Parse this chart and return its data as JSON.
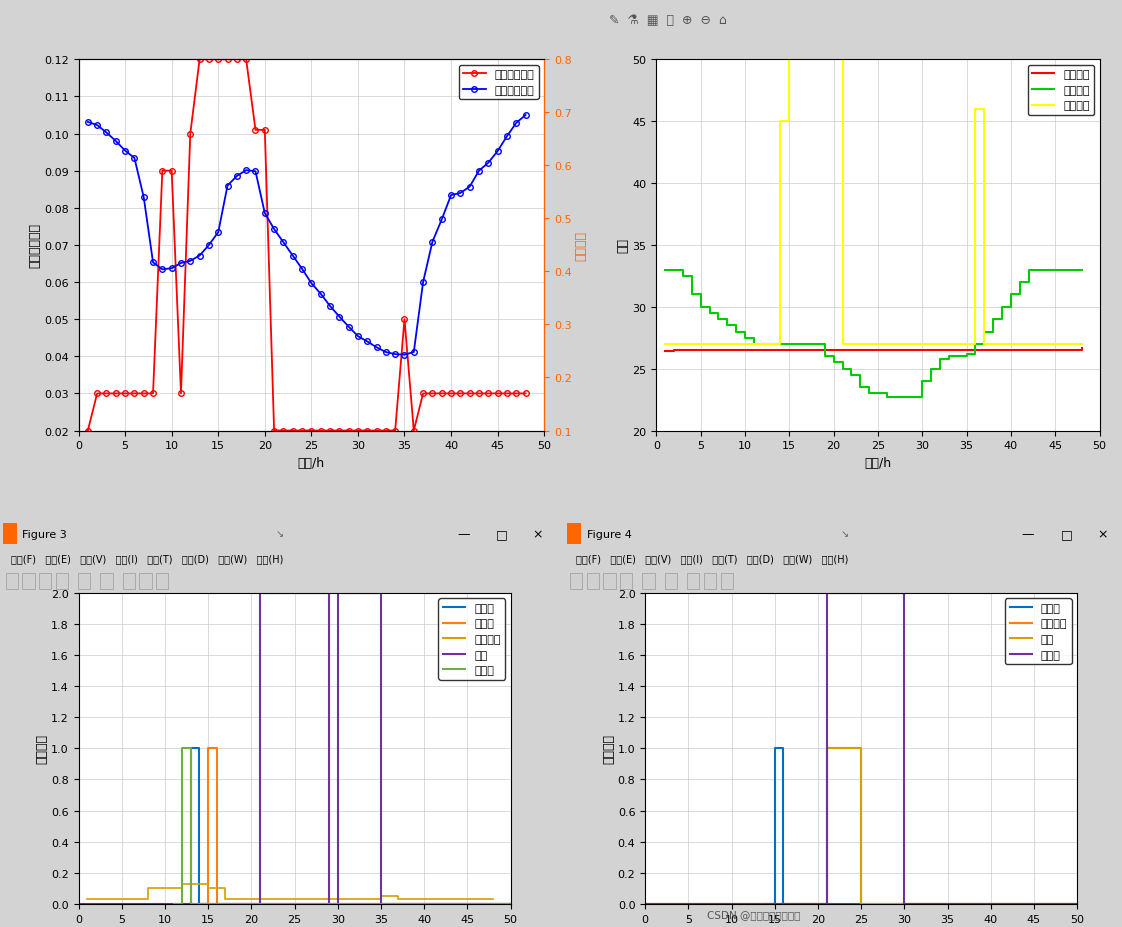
{
  "fig1": {
    "xlabel": "时间/h",
    "ylabel_left": "刚性负荷大小",
    "ylabel_right": "实时电价",
    "xlim": [
      0,
      50
    ],
    "ylim_left": [
      0.02,
      0.12
    ],
    "ylim_right": [
      0.1,
      0.8
    ],
    "rigid_load_x": [
      1,
      2,
      3,
      4,
      5,
      6,
      7,
      8,
      9,
      10,
      11,
      12,
      13,
      14,
      15,
      16,
      17,
      18,
      19,
      20,
      21,
      22,
      23,
      24,
      25,
      26,
      27,
      28,
      29,
      30,
      31,
      32,
      33,
      34,
      35,
      36,
      37,
      38,
      39,
      40,
      41,
      42,
      43,
      44,
      45,
      46,
      47,
      48
    ],
    "rigid_load_y": [
      0.02,
      0.03,
      0.03,
      0.03,
      0.03,
      0.03,
      0.03,
      0.03,
      0.09,
      0.09,
      0.03,
      0.1,
      0.12,
      0.12,
      0.12,
      0.12,
      0.12,
      0.12,
      0.101,
      0.101,
      0.02,
      0.02,
      0.02,
      0.02,
      0.02,
      0.02,
      0.02,
      0.02,
      0.02,
      0.02,
      0.02,
      0.02,
      0.02,
      0.02,
      0.05,
      0.02,
      0.03,
      0.03,
      0.03,
      0.03,
      0.03,
      0.03,
      0.03,
      0.03,
      0.03,
      0.03,
      0.03,
      0.03
    ],
    "price_x": [
      1,
      2,
      3,
      4,
      5,
      6,
      7,
      8,
      9,
      10,
      11,
      12,
      13,
      14,
      15,
      16,
      17,
      18,
      19,
      20,
      21,
      22,
      23,
      24,
      25,
      26,
      27,
      28,
      29,
      30,
      31,
      32,
      33,
      34,
      35,
      36,
      37,
      38,
      39,
      40,
      41,
      42,
      43,
      44,
      45,
      46,
      47,
      48
    ],
    "price_y": [
      0.682,
      0.676,
      0.662,
      0.646,
      0.628,
      0.614,
      0.54,
      0.417,
      0.404,
      0.406,
      0.416,
      0.42,
      0.43,
      0.45,
      0.474,
      0.562,
      0.58,
      0.591,
      0.589,
      0.51,
      0.48,
      0.455,
      0.43,
      0.405,
      0.378,
      0.358,
      0.335,
      0.315,
      0.296,
      0.278,
      0.268,
      0.257,
      0.248,
      0.244,
      0.243,
      0.248,
      0.38,
      0.456,
      0.498,
      0.544,
      0.548,
      0.56,
      0.59,
      0.605,
      0.627,
      0.655,
      0.68,
      0.695
    ],
    "legend_rigid": "刚性负荷曲线",
    "legend_price": "实时电价曲线",
    "rigid_color": "#ff0000",
    "price_color": "#0000ff",
    "right_tick_color": "#ff6600"
  },
  "fig2": {
    "xlabel": "时间/h",
    "ylabel": "温度",
    "xlim": [
      0,
      50
    ],
    "ylim": [
      20,
      50
    ],
    "indoor_x": [
      1,
      2,
      3,
      4,
      5,
      6,
      7,
      8,
      9,
      10,
      11,
      12,
      13,
      14,
      15,
      16,
      17,
      18,
      19,
      20,
      21,
      22,
      23,
      24,
      25,
      26,
      27,
      28,
      29,
      30,
      31,
      32,
      33,
      34,
      35,
      36,
      37,
      38,
      39,
      40,
      41,
      42,
      43,
      44,
      45,
      46,
      47,
      48
    ],
    "indoor_y": [
      26.4,
      26.5,
      26.5,
      26.5,
      26.5,
      26.5,
      26.5,
      26.5,
      26.5,
      26.5,
      26.5,
      26.5,
      26.5,
      26.5,
      26.5,
      26.5,
      26.5,
      26.5,
      26.5,
      26.5,
      26.5,
      26.5,
      26.5,
      26.5,
      26.5,
      26.5,
      26.5,
      26.5,
      26.5,
      26.5,
      26.5,
      26.5,
      26.5,
      26.5,
      26.5,
      26.5,
      26.5,
      26.5,
      26.5,
      26.5,
      26.5,
      26.5,
      26.5,
      26.5,
      26.5,
      26.5,
      26.5,
      26.7
    ],
    "outdoor_x": [
      1,
      2,
      3,
      4,
      5,
      6,
      7,
      8,
      9,
      10,
      11,
      12,
      13,
      14,
      15,
      16,
      17,
      18,
      19,
      20,
      21,
      22,
      23,
      24,
      25,
      26,
      27,
      28,
      29,
      30,
      31,
      32,
      33,
      34,
      35,
      36,
      37,
      38,
      39,
      40,
      41,
      42,
      43,
      44,
      45,
      46,
      47,
      48
    ],
    "outdoor_y": [
      33,
      33,
      32.5,
      31,
      30,
      29.5,
      29,
      28.5,
      28,
      27.5,
      27,
      27,
      27,
      27,
      27,
      27,
      27,
      27,
      26,
      25.5,
      25,
      24.5,
      23.5,
      23,
      23,
      22.7,
      22.7,
      22.7,
      22.7,
      24,
      25,
      25.8,
      26,
      26,
      26.2,
      27,
      28,
      29,
      30,
      31,
      32,
      33,
      33,
      33,
      33,
      33,
      33,
      33
    ],
    "hotwater_x": [
      1,
      2,
      3,
      4,
      5,
      6,
      7,
      8,
      9,
      10,
      11,
      12,
      13,
      14,
      15,
      16,
      17,
      18,
      19,
      20,
      21,
      22,
      23,
      24,
      25,
      26,
      27,
      28,
      29,
      30,
      31,
      32,
      33,
      34,
      35,
      36,
      37,
      38,
      39,
      40,
      41,
      42,
      43,
      44,
      45,
      46,
      47,
      48
    ],
    "hotwater_y": [
      27,
      27,
      27,
      27,
      27,
      27,
      27,
      27,
      27,
      27,
      27,
      27,
      27,
      45,
      50,
      50,
      50,
      50,
      50,
      50,
      27,
      27,
      27,
      27,
      27,
      27,
      27,
      27,
      27,
      27,
      27,
      27,
      27,
      27,
      27,
      46,
      27,
      27,
      27,
      27,
      27,
      27,
      27,
      27,
      27,
      27,
      27,
      27
    ],
    "legend_indoor": "室内温度",
    "legend_outdoor": "室外温度",
    "legend_hotwater": "热水温度",
    "indoor_color": "#ff0000",
    "outdoor_color": "#00cc00",
    "hotwater_color": "#ffff00"
  },
  "fig3": {
    "xlabel": "时间/h",
    "ylabel": "调度结果",
    "xlim": [
      0,
      50
    ],
    "ylim": [
      0,
      2
    ],
    "washer_x": [
      12,
      13,
      13,
      14,
      14,
      50
    ],
    "washer_y": [
      0,
      0,
      1,
      1,
      0,
      0
    ],
    "kettle_x": [
      14,
      15,
      15,
      16,
      16,
      50
    ],
    "kettle_y": [
      0,
      0,
      1,
      1,
      0,
      0
    ],
    "rigid_x": [
      1,
      2,
      3,
      4,
      5,
      6,
      7,
      8,
      9,
      10,
      11,
      12,
      13,
      14,
      15,
      16,
      17,
      18,
      19,
      20,
      21,
      22,
      23,
      24,
      25,
      26,
      27,
      28,
      29,
      30,
      31,
      32,
      33,
      34,
      35,
      36,
      37,
      38,
      39,
      40,
      41,
      42,
      43,
      44,
      45,
      46,
      47,
      48
    ],
    "rigid_y": [
      0.03,
      0.03,
      0.03,
      0.03,
      0.03,
      0.03,
      0.03,
      0.1,
      0.1,
      0.1,
      0.1,
      0.13,
      0.13,
      0.13,
      0.1,
      0.1,
      0.03,
      0.03,
      0.03,
      0.03,
      0.03,
      0.03,
      0.03,
      0.03,
      0.03,
      0.03,
      0.03,
      0.03,
      0.03,
      0.03,
      0.03,
      0.03,
      0.03,
      0.03,
      0.05,
      0.05,
      0.03,
      0.03,
      0.03,
      0.03,
      0.03,
      0.03,
      0.03,
      0.03,
      0.03,
      0.03,
      0.03,
      0.03
    ],
    "computer_x": [
      0,
      20,
      20,
      21,
      21,
      29,
      29,
      30,
      30,
      35,
      35,
      36,
      36,
      50
    ],
    "computer_y": [
      0,
      0,
      0,
      0,
      2,
      2,
      0,
      0,
      2,
      2,
      0,
      0,
      0,
      0
    ],
    "sterilizer_x": [
      11,
      12,
      12,
      13,
      13,
      50
    ],
    "sterilizer_y": [
      0,
      0,
      1,
      1,
      0,
      0
    ],
    "legend": [
      "洗衣机",
      "热水壶",
      "刚性负荷",
      "电脑",
      "消毒柜"
    ],
    "colors": [
      "#0070c0",
      "#ff7f0e",
      "#d4a000",
      "#7030a0",
      "#70ad47"
    ]
  },
  "fig4": {
    "xlabel": "时间/h",
    "ylabel": "调度结果",
    "xlim": [
      0,
      50
    ],
    "ylim": [
      0,
      2
    ],
    "dishwasher_x": [
      14,
      15,
      15,
      16,
      16,
      50
    ],
    "dishwasher_y": [
      0,
      0,
      1,
      1,
      0,
      0
    ],
    "ev_x": [
      0,
      20,
      20,
      21,
      21,
      25,
      25,
      26,
      26,
      50
    ],
    "ev_y": [
      0,
      0,
      0,
      0,
      1,
      1,
      0,
      0,
      0,
      0
    ],
    "computer_x": [
      0,
      20,
      20,
      21,
      21,
      25,
      25,
      26,
      26,
      50
    ],
    "computer_y": [
      0,
      0,
      0,
      0,
      1,
      1,
      0,
      0,
      0,
      0
    ],
    "dryer_x": [
      0,
      20,
      20,
      21,
      21,
      30,
      30,
      31,
      31,
      50
    ],
    "dryer_y": [
      0,
      0,
      0,
      0,
      2,
      2,
      0,
      0,
      0,
      0
    ],
    "legend": [
      "洗碗机",
      "电动汽车",
      "电脑",
      "烘干机"
    ],
    "colors": [
      "#0070c0",
      "#ff7f0e",
      "#d4a000",
      "#7030a0"
    ]
  },
  "window_bg": "#d3d3d3",
  "plot_bg": "#ffffff",
  "watermark": "CSDN @学习不好的电气仔",
  "fig3_title": "Figure 3",
  "fig4_title": "Figure 4",
  "menu_text": "文件(F)   编辑(E)   查看(V)   插入(I)   工具(T)   桌面(D)   窗口(W)   帮助(H)"
}
